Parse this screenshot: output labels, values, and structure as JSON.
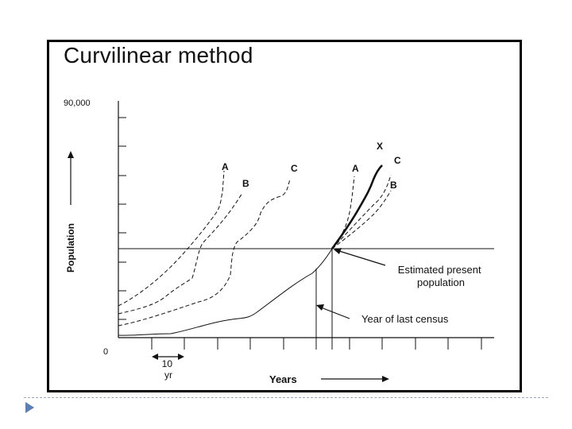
{
  "slide": {
    "title": "Curvilinear method"
  },
  "colors": {
    "ink": "#111111",
    "frame": "#000000",
    "footer_rule": "#9aa6b8",
    "bullet": "#5b7fb4"
  },
  "chart_data": {
    "type": "line",
    "title": "",
    "ylabel": "Population",
    "xlabel": "Years",
    "ytick_labels": [
      "90,000",
      "0"
    ],
    "x_interval_label": "10\nyr",
    "grid": false,
    "annotations": {
      "estimated": "Estimated present\npopulation",
      "census": "Year of last census"
    },
    "series": [
      {
        "name": "A",
        "style": "dashed",
        "group": "comparison"
      },
      {
        "name": "B",
        "style": "dashed",
        "group": "comparison"
      },
      {
        "name": "C",
        "style": "dashed",
        "group": "comparison"
      },
      {
        "name": "A",
        "style": "dashed",
        "group": "projection"
      },
      {
        "name": "B",
        "style": "dashed",
        "group": "projection"
      },
      {
        "name": "C",
        "style": "dashed",
        "group": "projection"
      },
      {
        "name": "X",
        "style": "bold",
        "group": "projection"
      }
    ]
  }
}
